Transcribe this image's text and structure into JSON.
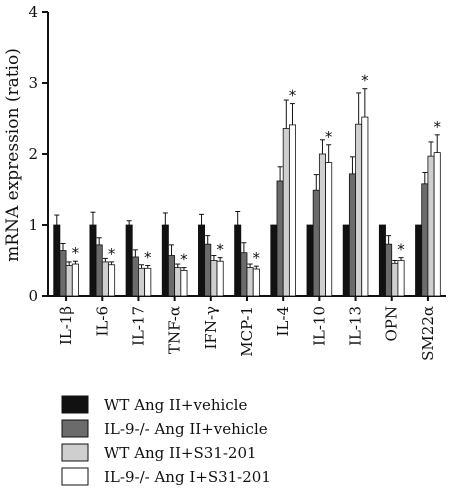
{
  "chart_data": {
    "type": "bar",
    "ylabel": "mRNA expression (ratio)",
    "xlabel": "",
    "ylim": [
      0,
      4
    ],
    "yticks": [
      "0",
      "1",
      "2",
      "3",
      "4"
    ],
    "categories": [
      "IL-1β",
      "IL-6",
      "IL-17",
      "TNF-α",
      "IFN-γ",
      "MCP-1",
      "IL-4",
      "IL-10",
      "IL-13",
      "OPN",
      "SM22α"
    ],
    "series": [
      {
        "name": "WT Ang II+vehicle",
        "color": "#111111",
        "values": [
          1.0,
          1.0,
          1.0,
          1.0,
          1.0,
          1.0,
          1.0,
          1.0,
          1.0,
          1.0,
          1.0
        ],
        "errors": [
          0.14,
          0.18,
          0.06,
          0.17,
          0.15,
          0.19,
          0.0,
          0.0,
          0.0,
          0.0,
          0.0
        ]
      },
      {
        "name": "IL-9-/- Ang II+vehicle",
        "color": "#6b6b6b",
        "values": [
          0.64,
          0.72,
          0.55,
          0.57,
          0.73,
          0.61,
          1.62,
          1.49,
          1.72,
          0.73,
          1.58
        ],
        "errors": [
          0.1,
          0.1,
          0.1,
          0.15,
          0.12,
          0.14,
          0.2,
          0.22,
          0.24,
          0.12,
          0.16
        ]
      },
      {
        "name": "WT Ang II+S31-201",
        "color": "#cfcfcf",
        "values": [
          0.43,
          0.48,
          0.39,
          0.4,
          0.5,
          0.4,
          2.36,
          2.0,
          2.42,
          0.46,
          1.97
        ],
        "errors": [
          0.05,
          0.05,
          0.05,
          0.05,
          0.07,
          0.05,
          0.4,
          0.2,
          0.44,
          0.04,
          0.2
        ]
      },
      {
        "name": "IL-9-/- Ang I+S31-201",
        "color": "#ffffff",
        "values": [
          0.45,
          0.44,
          0.39,
          0.36,
          0.49,
          0.38,
          2.41,
          1.88,
          2.52,
          0.5,
          2.02
        ],
        "errors": [
          0.04,
          0.04,
          0.04,
          0.04,
          0.05,
          0.04,
          0.3,
          0.25,
          0.4,
          0.04,
          0.25
        ]
      }
    ],
    "significance": [
      "*",
      "*",
      "*",
      "*",
      "*",
      "*",
      "*",
      "*",
      "*",
      "*",
      "*"
    ],
    "legend_position": "bottom"
  }
}
